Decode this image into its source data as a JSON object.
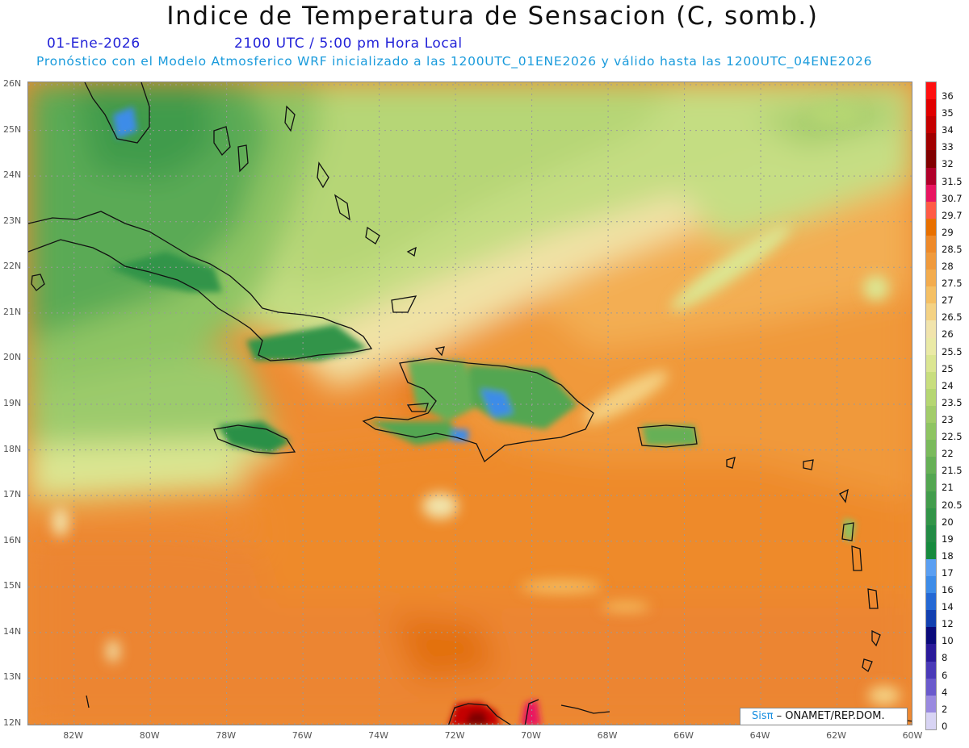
{
  "header": {
    "title": "Indice de Temperatura de Sensacion (C, somb.)",
    "date": "01-Ene-2026",
    "time": "2100 UTC / 5:00 pm Hora Local",
    "forecast": "Pronóstico con el Modelo Atmosferico WRF inicializado a las 1200UTC_01ENE2026 y válido hasta las  1200UTC_04ENE2026"
  },
  "map": {
    "lat_labels": [
      "26N",
      "25N",
      "24N",
      "23N",
      "22N",
      "21N",
      "20N",
      "19N",
      "18N",
      "17N",
      "16N",
      "15N",
      "14N",
      "13N",
      "12N"
    ],
    "lon_labels": [
      "82W",
      "80W",
      "78W",
      "76W",
      "74W",
      "72W",
      "70W",
      "68W",
      "66W",
      "64W",
      "62W",
      "60W"
    ],
    "lat_range": [
      12,
      26
    ],
    "lon_range": [
      -83.2,
      -60
    ],
    "grid": true
  },
  "legend": {
    "labels": [
      "36",
      "35",
      "34",
      "33",
      "32",
      "31.5",
      "30.7",
      "29.7",
      "29",
      "28.5",
      "28",
      "27.5",
      "27",
      "26.5",
      "26",
      "25.5",
      "25",
      "24",
      "23.5",
      "23",
      "22.5",
      "22",
      "21.5",
      "21",
      "20.5",
      "20",
      "19",
      "18",
      "17",
      "16",
      "14",
      "12",
      "10",
      "8",
      "6",
      "4",
      "2",
      "0"
    ],
    "colors": [
      "#ff1010",
      "#e00000",
      "#c40000",
      "#a00000",
      "#800000",
      "#b0002a",
      "#e81560",
      "#ff5a45",
      "#e87000",
      "#ee8a2a",
      "#f09a3c",
      "#f3ac4e",
      "#f5c064",
      "#f4d284",
      "#f1e4ac",
      "#eaeaa6",
      "#dbe692",
      "#c8de7e",
      "#b5d672",
      "#a2cc6a",
      "#8ec462",
      "#7aba5c",
      "#66b056",
      "#53a651",
      "#429c4c",
      "#329448",
      "#238b45",
      "#178a3e",
      "#5a9ff2",
      "#3d8ce8",
      "#2468d4",
      "#1240b0",
      "#0a0a7a",
      "#2a1a9a",
      "#4a3ab8",
      "#6a5acc",
      "#9a8ae0",
      "#d8d4f4"
    ]
  },
  "credit": {
    "brand": "Sisπ",
    "separator": " – ",
    "org": "ONAMET/REP.DOM."
  }
}
